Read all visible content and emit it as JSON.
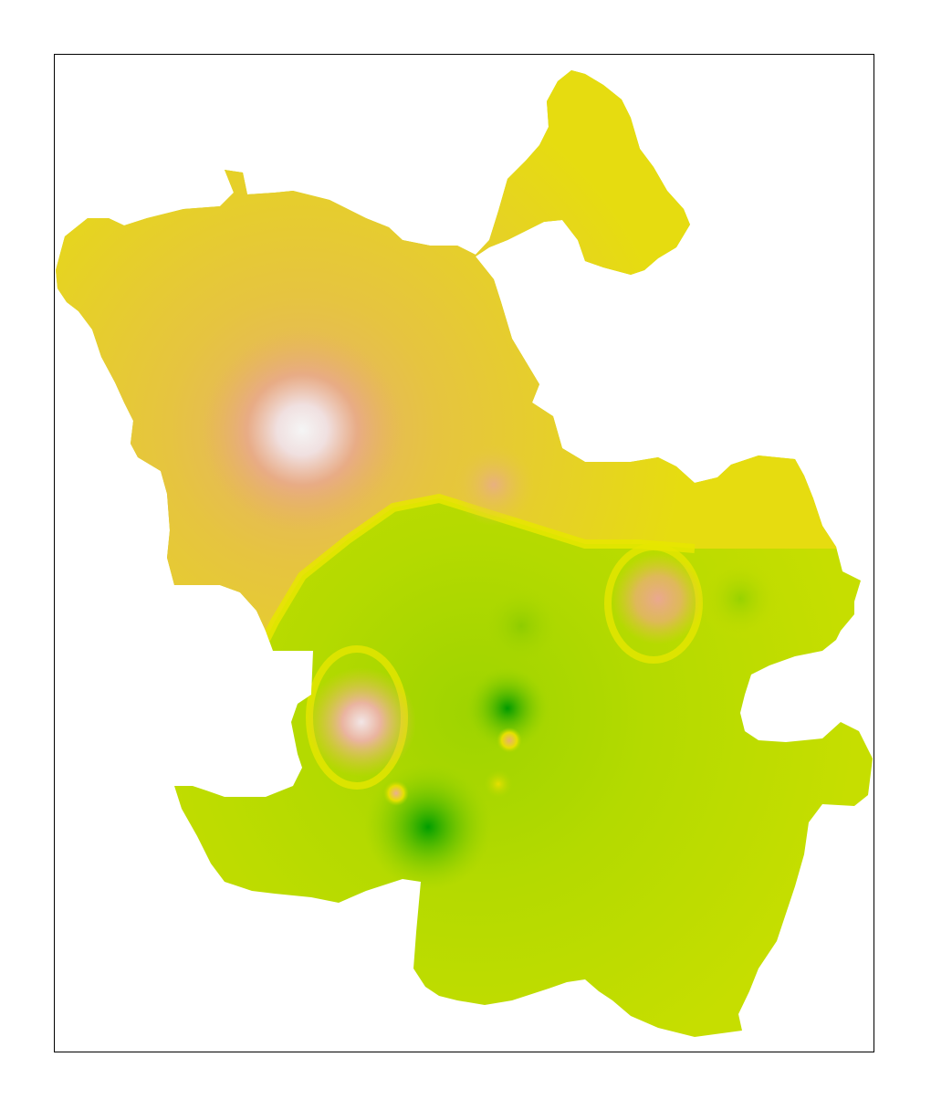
{
  "map": {
    "type": "interpolated-surface",
    "frame": "black-border",
    "color_scale": {
      "low": "#00a000",
      "mid_low": "#a6d600",
      "mid": "#e6e600",
      "mid_high": "#e6b800",
      "high_a": "#e8a880",
      "high_b": "#f2f2f2"
    },
    "base_colors": {
      "north": "#e6d21a",
      "south": "#c2dc00",
      "boundary": "#e6e600"
    },
    "hotspots": [
      {
        "name": "peak-northwest",
        "level": "very-high"
      },
      {
        "name": "peak-center-west",
        "level": "very-high"
      },
      {
        "name": "peak-east",
        "level": "high"
      },
      {
        "name": "peak-center-north",
        "level": "high"
      },
      {
        "name": "low-center",
        "level": "very-low"
      },
      {
        "name": "low-southwest",
        "level": "very-low"
      },
      {
        "name": "low-east",
        "level": "low"
      }
    ]
  }
}
